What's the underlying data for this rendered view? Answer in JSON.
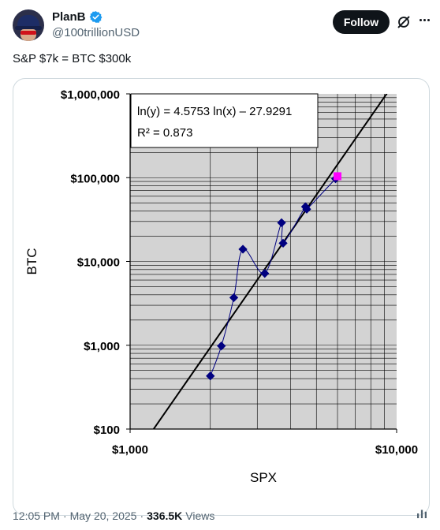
{
  "post": {
    "display_name": "PlanB",
    "handle": "@100trillionUSD",
    "follow_label": "Follow",
    "text": "S&P $7k = BTC $300k",
    "time": "12:05 PM",
    "date": "May 20, 2025",
    "views_count": "336.5K",
    "views_label": "Views",
    "separator": "·"
  },
  "icons": {
    "verified": "verified-badge-icon",
    "grok": "grok-icon",
    "more": "more-icon",
    "analytics": "analytics-icon"
  },
  "colors": {
    "accent": "#1d9bf0",
    "follow_bg": "#0f1419",
    "plot_bg": "#d3d3d3",
    "series": "#000080",
    "highlight": "#ff00ff",
    "trend": "#000000"
  },
  "chart_data": {
    "type": "scatter",
    "xlabel": "SPX",
    "ylabel": "BTC",
    "x_scale": "log",
    "y_scale": "log",
    "xlim": [
      1000,
      10000
    ],
    "ylim": [
      100,
      1000000
    ],
    "x_ticks": [
      1000,
      10000
    ],
    "x_tick_labels": [
      "$1,000",
      "$10,000"
    ],
    "y_ticks": [
      100,
      1000,
      10000,
      100000,
      1000000
    ],
    "y_tick_labels": [
      "$100",
      "$1,000",
      "$10,000",
      "$100,000",
      "$1,000,000"
    ],
    "grid": true,
    "series": [
      {
        "type": "line+markers",
        "x": [
          2000,
          2200,
          2450,
          2650,
          3200,
          3700,
          3750,
          4550,
          4600,
          5900
        ],
        "y": [
          430,
          980,
          3700,
          14000,
          7200,
          29000,
          16500,
          45000,
          42000,
          97000
        ]
      },
      {
        "type": "markers",
        "x": [
          6000
        ],
        "y": [
          104000
        ]
      }
    ],
    "trendline": {
      "equation": "ln(y) = 4.5753 ln(x) – 27.9291",
      "r_squared": "R² = 0.873",
      "slope": 4.5753,
      "intercept": -27.9291
    }
  }
}
